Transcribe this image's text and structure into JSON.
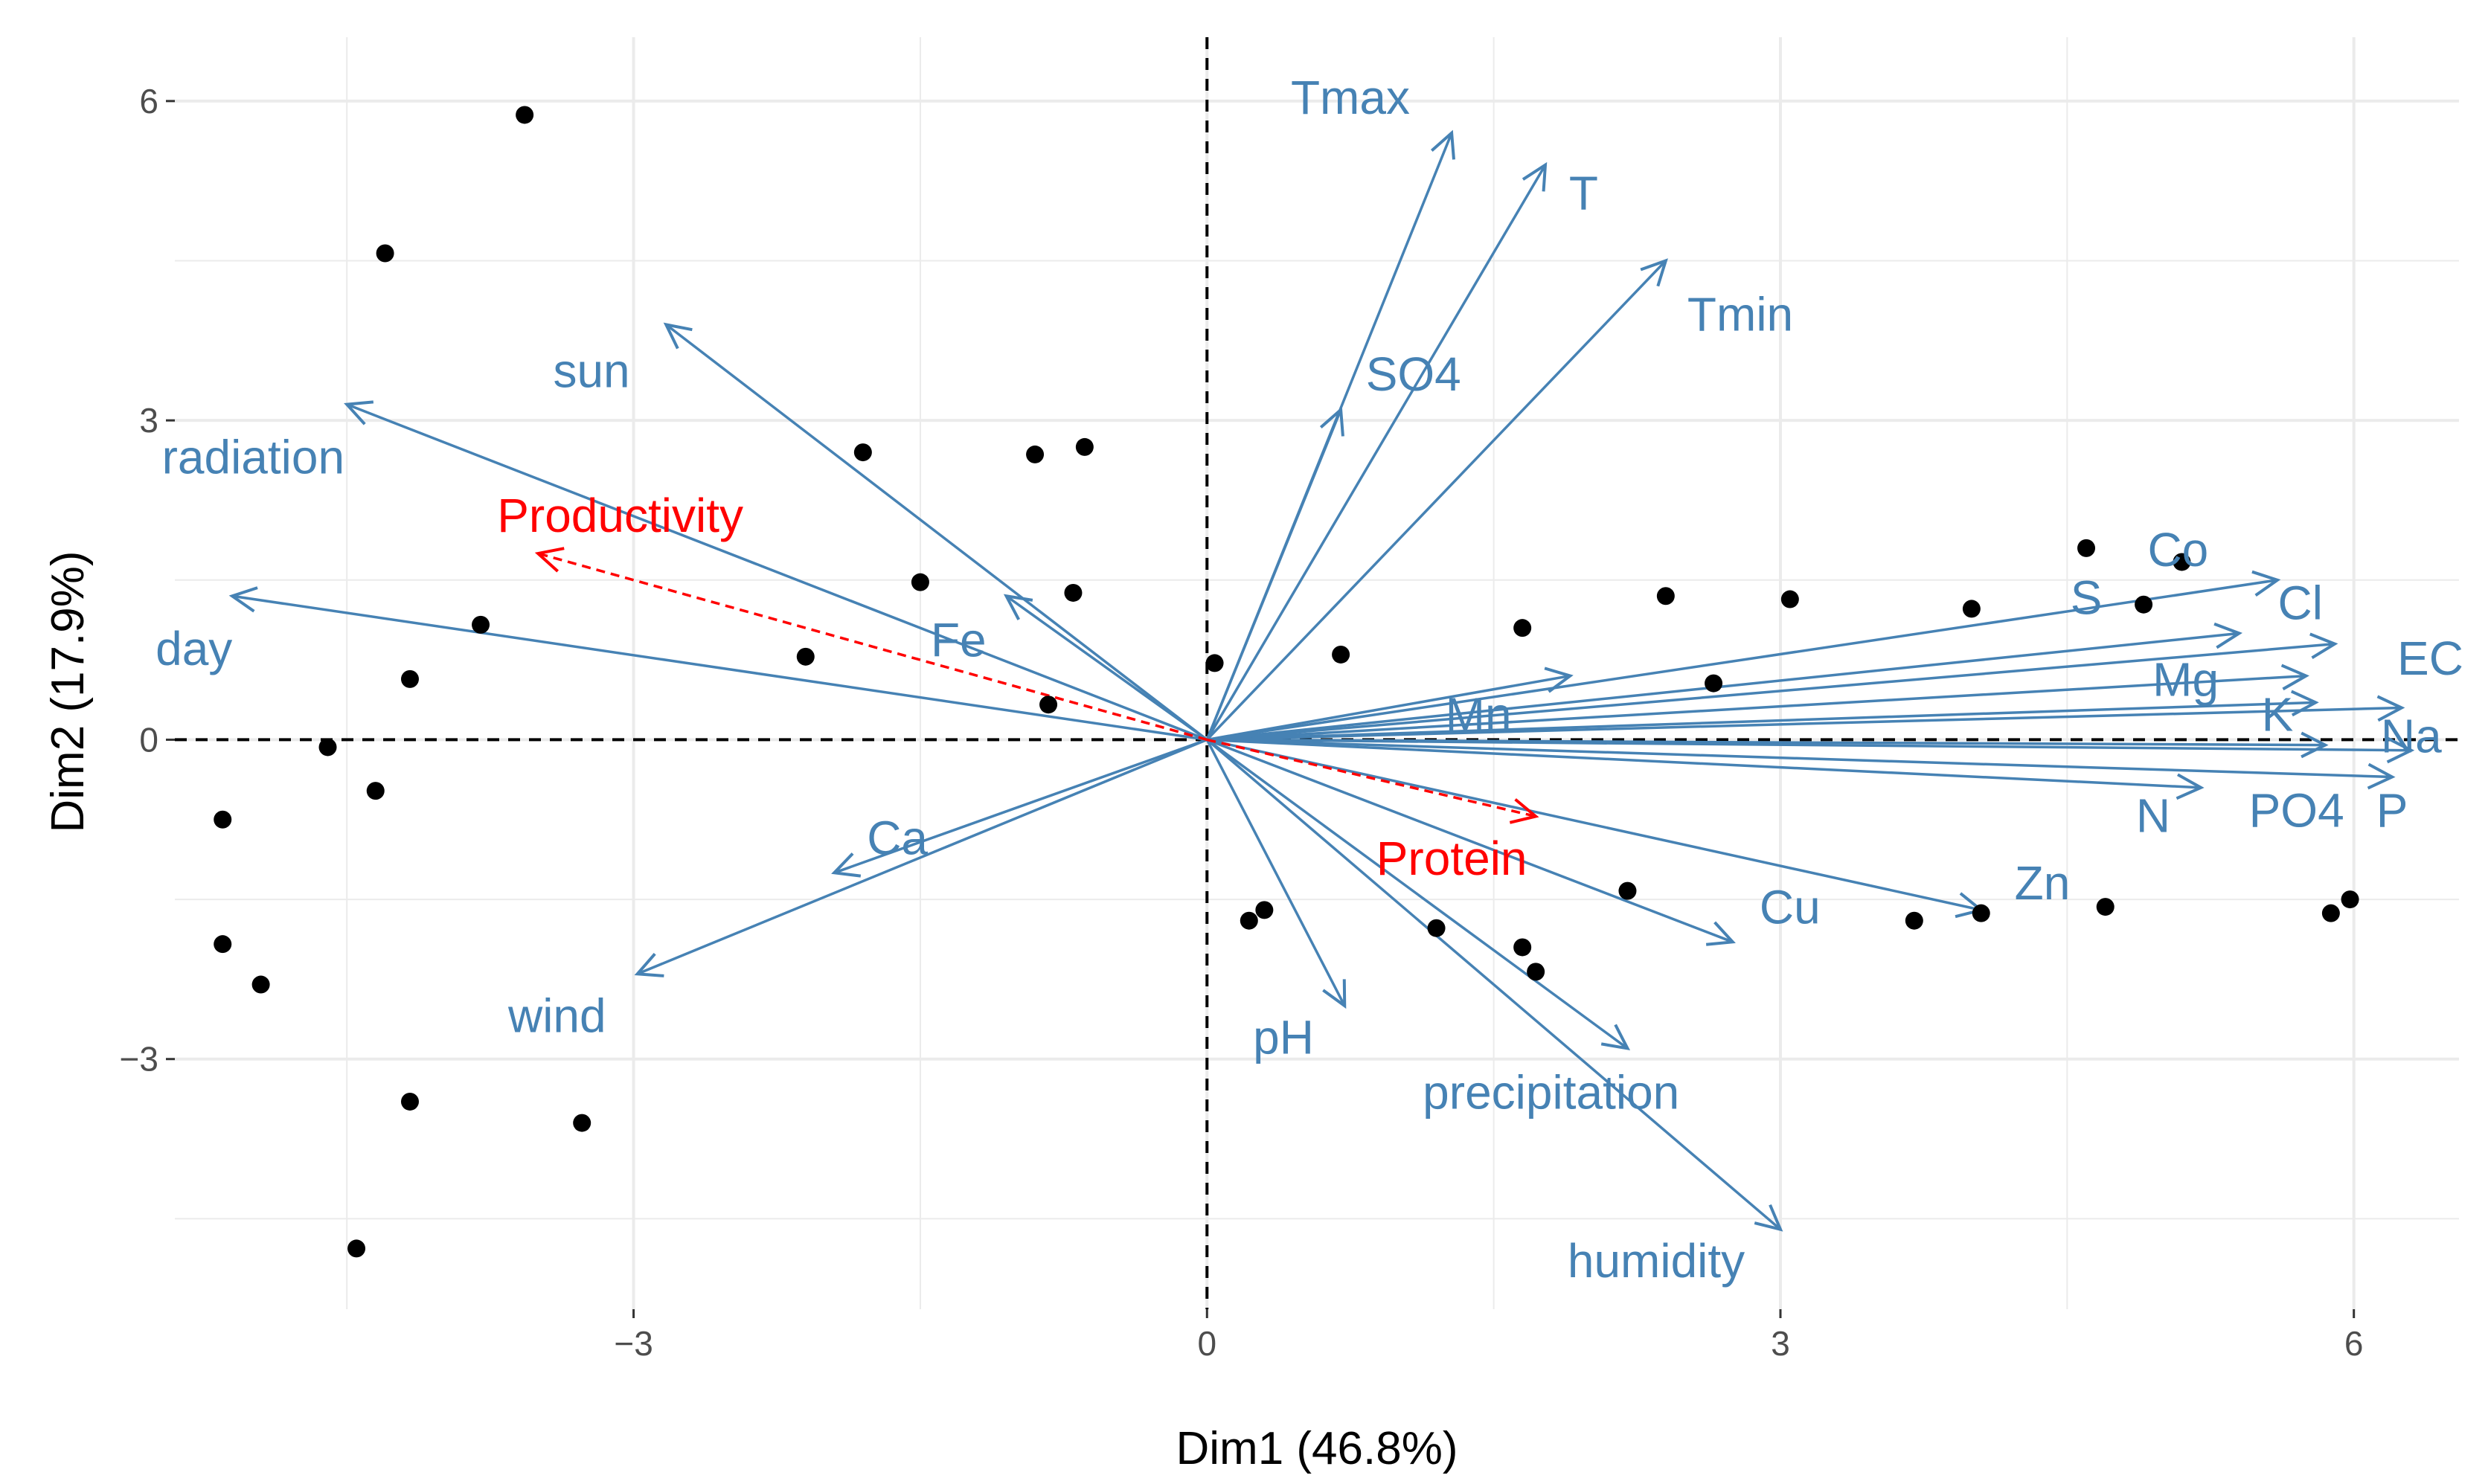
{
  "chart_data": {
    "type": "scatter",
    "subtype": "pca-biplot",
    "title": "",
    "xlabel": "Dim1 (46.8%)",
    "ylabel": "Dim2 (17.9%)",
    "xlim": [
      -5.4,
      6.55
    ],
    "ylim": [
      -5.35,
      6.6
    ],
    "xticks": [
      -3,
      0,
      3,
      6
    ],
    "yticks": [
      -3,
      0,
      3,
      6
    ],
    "xtick_labels": [
      "−3",
      "0",
      "3",
      "6"
    ],
    "ytick_labels": [
      "−3",
      "0",
      "3",
      "6"
    ],
    "grid": true,
    "colors": {
      "variable": "#4682b4",
      "supplementary": "#ff0000",
      "point": "#000000",
      "grid": "#ebebeb",
      "axis_text": "#4d4d4d"
    },
    "individuals": [
      [
        -3.57,
        5.87
      ],
      [
        -4.3,
        4.57
      ],
      [
        -1.8,
        2.7
      ],
      [
        -0.9,
        2.68
      ],
      [
        -0.64,
        2.75
      ],
      [
        -1.5,
        1.48
      ],
      [
        -0.7,
        1.38
      ],
      [
        -3.8,
        1.08
      ],
      [
        -2.1,
        0.78
      ],
      [
        -4.17,
        0.57
      ],
      [
        -4.6,
        -0.07
      ],
      [
        -4.35,
        -0.48
      ],
      [
        -5.15,
        -0.75
      ],
      [
        -5.15,
        -1.92
      ],
      [
        -4.95,
        -2.3
      ],
      [
        -4.17,
        -3.4
      ],
      [
        -3.27,
        -3.6
      ],
      [
        -4.45,
        -4.78
      ],
      [
        -0.83,
        0.33
      ],
      [
        0.04,
        0.72
      ],
      [
        0.7,
        0.8
      ],
      [
        1.65,
        1.05
      ],
      [
        2.4,
        1.35
      ],
      [
        2.65,
        0.53
      ],
      [
        3.05,
        1.32
      ],
      [
        4.0,
        1.23
      ],
      [
        4.6,
        1.8
      ],
      [
        4.9,
        1.27
      ],
      [
        5.1,
        1.67
      ],
      [
        0.22,
        -1.7
      ],
      [
        0.3,
        -1.6
      ],
      [
        1.2,
        -1.77
      ],
      [
        1.65,
        -1.95
      ],
      [
        1.72,
        -2.18
      ],
      [
        2.2,
        -1.42
      ],
      [
        3.7,
        -1.7
      ],
      [
        4.05,
        -1.63
      ],
      [
        4.7,
        -1.57
      ],
      [
        5.88,
        -1.63
      ],
      [
        5.98,
        -1.5
      ]
    ],
    "variables": [
      {
        "name": "Tmax",
        "x": 1.28,
        "y": 5.7,
        "label_x": 0.75,
        "label_y": 6.0
      },
      {
        "name": "T",
        "x": 1.77,
        "y": 5.4,
        "label_x": 1.97,
        "label_y": 5.1
      },
      {
        "name": "Tmin",
        "x": 2.4,
        "y": 4.5,
        "label_x": 2.79,
        "label_y": 3.96
      },
      {
        "name": "SO4",
        "x": 0.7,
        "y": 3.1,
        "label_x": 1.08,
        "label_y": 3.4
      },
      {
        "name": "sun",
        "x": -2.83,
        "y": 3.9,
        "label_x": -3.22,
        "label_y": 3.43
      },
      {
        "name": "radiation",
        "x": -4.5,
        "y": 3.15,
        "label_x": -4.99,
        "label_y": 2.62
      },
      {
        "name": "day",
        "x": -5.1,
        "y": 1.35,
        "label_x": -5.3,
        "label_y": 0.82
      },
      {
        "name": "Fe",
        "x": -1.05,
        "y": 1.35,
        "label_x": -1.3,
        "label_y": 0.9
      },
      {
        "name": "Ca",
        "x": -1.95,
        "y": -1.25,
        "label_x": -1.62,
        "label_y": -0.96
      },
      {
        "name": "wind",
        "x": -2.98,
        "y": -2.2,
        "label_x": -3.4,
        "label_y": -2.63
      },
      {
        "name": "pH",
        "x": 0.72,
        "y": -2.5,
        "label_x": 0.4,
        "label_y": -2.83
      },
      {
        "name": "precipitation",
        "x": 2.2,
        "y": -2.9,
        "label_x": 1.8,
        "label_y": -3.35
      },
      {
        "name": "humidity",
        "x": 3.0,
        "y": -4.6,
        "label_x": 2.35,
        "label_y": -4.93
      },
      {
        "name": "Cu",
        "x": 2.75,
        "y": -1.9,
        "label_x": 3.05,
        "label_y": -1.61
      },
      {
        "name": "Zn",
        "x": 4.05,
        "y": -1.6,
        "label_x": 4.37,
        "label_y": -1.38
      },
      {
        "name": "Mn",
        "x": 1.9,
        "y": 0.6,
        "label_x": 1.42,
        "label_y": 0.2
      },
      {
        "name": "N",
        "x": 5.2,
        "y": -0.45,
        "label_x": 4.95,
        "label_y": -0.75
      },
      {
        "name": "PO4",
        "x": 5.85,
        "y": -0.05,
        "label_x": 5.7,
        "label_y": -0.7
      },
      {
        "name": "P",
        "x": 6.2,
        "y": -0.35,
        "label_x": 6.2,
        "label_y": -0.7
      },
      {
        "name": "Na",
        "x": 6.3,
        "y": -0.1,
        "label_x": 6.3,
        "label_y": 0.0
      },
      {
        "name": "K",
        "x": 5.8,
        "y": 0.35,
        "label_x": 5.6,
        "label_y": 0.2
      },
      {
        "name": "Mg",
        "x": 5.75,
        "y": 0.6,
        "label_x": 5.12,
        "label_y": 0.53
      },
      {
        "name": "EC",
        "x": 6.25,
        "y": 0.3,
        "label_x": 6.4,
        "label_y": 0.73
      },
      {
        "name": "Cl",
        "x": 5.9,
        "y": 0.9,
        "label_x": 5.72,
        "label_y": 1.25
      },
      {
        "name": "Co",
        "x": 5.6,
        "y": 1.5,
        "label_x": 5.08,
        "label_y": 1.75
      },
      {
        "name": "S",
        "x": 5.4,
        "y": 1.0,
        "label_x": 4.6,
        "label_y": 1.3
      }
    ],
    "supplementary": [
      {
        "name": "Productivity",
        "x": -3.5,
        "y": 1.75,
        "label_x": -3.07,
        "label_y": 2.07
      },
      {
        "name": "Protein",
        "x": 1.72,
        "y": -0.72,
        "label_x": 1.28,
        "label_y": -1.15
      }
    ]
  }
}
